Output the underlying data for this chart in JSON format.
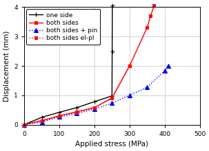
{
  "title": "",
  "xlabel": "Applied stress (MPa)",
  "ylabel": "Displacement (mm)",
  "xlim": [
    0,
    500
  ],
  "ylim": [
    0,
    4
  ],
  "xticks": [
    0,
    100,
    200,
    300,
    400,
    500
  ],
  "yticks": [
    0,
    1,
    2,
    3,
    4
  ],
  "series": [
    {
      "label": "one side",
      "color": "black",
      "linestyle": "-",
      "marker": "+",
      "markersize": 5,
      "linewidth": 1.0,
      "x": [
        0,
        50,
        100,
        150,
        200,
        250,
        250.5,
        251
      ],
      "y": [
        0,
        0.25,
        0.42,
        0.58,
        0.78,
        0.98,
        2.5,
        4.05
      ]
    },
    {
      "label": "both sides",
      "color": "red",
      "linestyle": "-",
      "marker": "s",
      "markersize": 3.5,
      "linewidth": 1.0,
      "x": [
        0,
        50,
        100,
        150,
        200,
        250,
        300,
        350,
        360,
        370
      ],
      "y": [
        0,
        0.14,
        0.3,
        0.44,
        0.58,
        0.9,
        2.0,
        3.3,
        3.7,
        4.05
      ]
    },
    {
      "label": "both sides + pin",
      "color": "blue",
      "linestyle": ":",
      "marker": "^",
      "markersize": 4,
      "linewidth": 1.0,
      "x": [
        0,
        50,
        100,
        150,
        200,
        250,
        300,
        350,
        400,
        410
      ],
      "y": [
        0,
        0.09,
        0.26,
        0.38,
        0.53,
        0.73,
        1.0,
        1.27,
        1.83,
        2.0
      ]
    },
    {
      "label": "both sides el-pl",
      "color": "red",
      "linestyle": ":",
      "marker": "s",
      "markersize": 3.5,
      "linewidth": 1.0,
      "x": [
        0,
        50,
        100,
        150,
        200,
        250,
        300
      ],
      "y": [
        0,
        0.12,
        0.29,
        0.42,
        0.57,
        0.92,
        2.0
      ]
    }
  ],
  "legend_fontsize": 6.5,
  "tick_fontsize": 6.5,
  "label_fontsize": 7.5,
  "figsize": [
    3.03,
    2.2
  ],
  "dpi": 100,
  "grid_color": "#c0c0c0",
  "background_color": "#ffffff"
}
